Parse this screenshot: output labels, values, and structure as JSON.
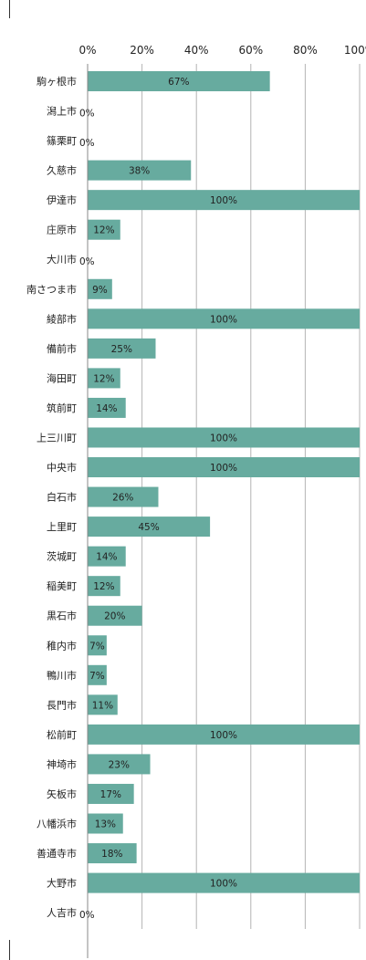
{
  "chart_data": {
    "type": "bar",
    "orientation": "horizontal",
    "categories": [
      "駒ヶ根市",
      "潟上市",
      "篠栗町",
      "久慈市",
      "伊達市",
      "庄原市",
      "大川市",
      "南さつま市",
      "綾部市",
      "備前市",
      "海田町",
      "筑前町",
      "上三川町",
      "中央市",
      "白石市",
      "上里町",
      "茨城町",
      "稲美町",
      "黒石市",
      "稚内市",
      "鴨川市",
      "長門市",
      "松前町",
      "神埼市",
      "矢板市",
      "八幡浜市",
      "善通寺市",
      "大野市",
      "人吉市"
    ],
    "values": [
      67,
      0,
      0,
      38,
      100,
      12,
      0,
      9,
      100,
      25,
      12,
      14,
      100,
      100,
      26,
      45,
      14,
      12,
      20,
      7,
      7,
      11,
      100,
      23,
      17,
      13,
      18,
      100,
      0
    ],
    "value_labels": [
      "67%",
      "0%",
      "0%",
      "38%",
      "100%",
      "12%",
      "0%",
      "9%",
      "100%",
      "25%",
      "12%",
      "14%",
      "100%",
      "100%",
      "26%",
      "45%",
      "14%",
      "12%",
      "20%",
      "7%",
      "7%",
      "11%",
      "100%",
      "23%",
      "17%",
      "13%",
      "18%",
      "100%",
      "0%"
    ],
    "x_ticks": [
      "0%",
      "20%",
      "40%",
      "60%",
      "80%",
      "100%"
    ],
    "x_tick_values": [
      0,
      20,
      40,
      60,
      80,
      100
    ],
    "xlim": [
      0,
      100
    ],
    "grid": true,
    "legend": "none",
    "title": "",
    "xlabel": "",
    "ylabel": "",
    "colors": {
      "bar": "#67ab9f",
      "grid": "#b4b4b4",
      "axis": "#888888",
      "text": "#222222",
      "frame": "#333333"
    }
  }
}
